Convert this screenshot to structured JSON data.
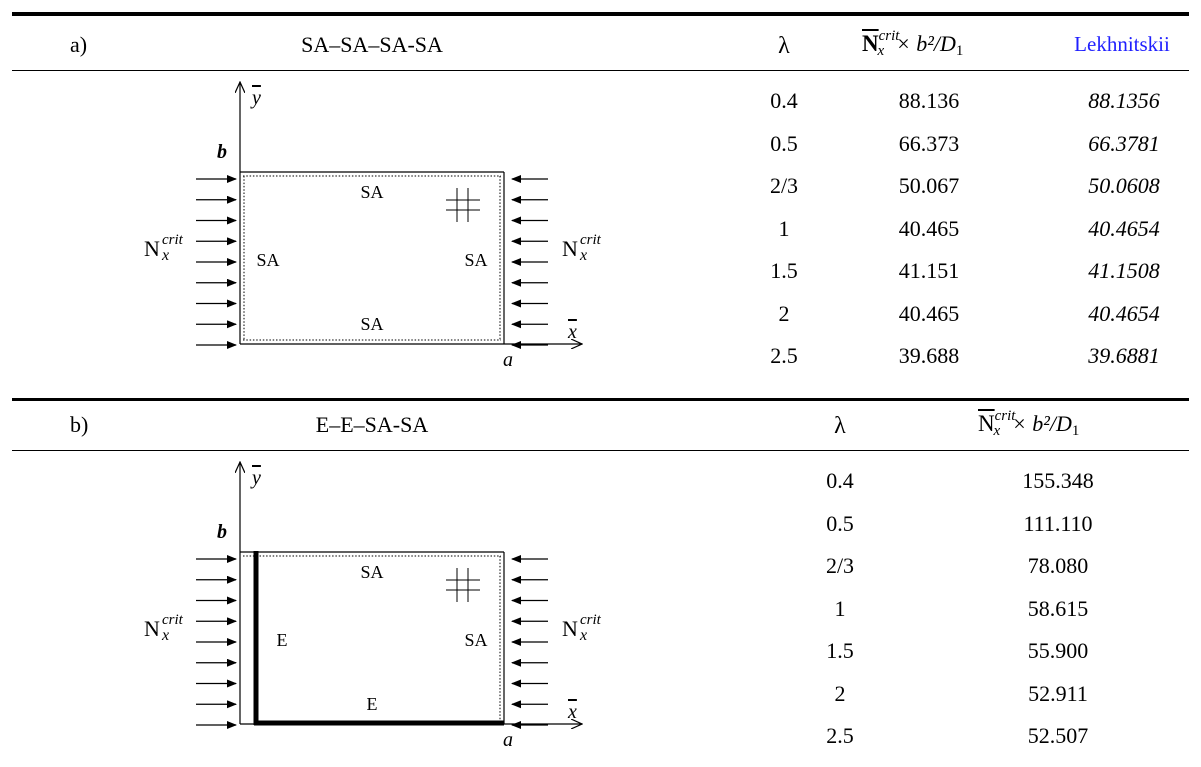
{
  "table_a": {
    "label": "a)",
    "boundary": "SA–SA–SA-SA",
    "col_lambda": "λ",
    "col_value_sym": "N",
    "col_value_sup": "crit",
    "col_value_sub": "x",
    "col_value_tail": "× b²/D",
    "col_value_tail_sub": "1",
    "col_ref": "Lekhnitskii",
    "rows": [
      {
        "lambda": "0.4",
        "value": "88.136",
        "ref": "88.1356"
      },
      {
        "lambda": "0.5",
        "value": "66.373",
        "ref": "66.3781"
      },
      {
        "lambda": "2/3",
        "value": "50.067",
        "ref": "50.0608"
      },
      {
        "lambda": "1",
        "value": "40.465",
        "ref": "40.4654"
      },
      {
        "lambda": "1.5",
        "value": "41.151",
        "ref": "41.1508"
      },
      {
        "lambda": "2",
        "value": "40.465",
        "ref": "40.4654"
      },
      {
        "lambda": "2.5",
        "value": "39.688",
        "ref": "39.6881"
      }
    ],
    "figure": {
      "y_axis": "y",
      "x_axis": "x",
      "b": "b",
      "a": "a",
      "edge_top": "SA",
      "edge_bottom": "SA",
      "edge_left": "SA",
      "edge_right": "SA",
      "load_sym": "N",
      "load_sub": "x",
      "load_sup": "crit"
    }
  },
  "table_b": {
    "label": "b)",
    "boundary": "E–E–SA-SA",
    "col_lambda": "λ",
    "col_value_sym": "N",
    "col_value_sup": "crit",
    "col_value_sub": "x",
    "col_value_tail": "× b²/D",
    "col_value_tail_sub": "1",
    "rows": [
      {
        "lambda": "0.4",
        "value": "155.348"
      },
      {
        "lambda": "0.5",
        "value": "111.110"
      },
      {
        "lambda": "2/3",
        "value": "78.080"
      },
      {
        "lambda": "1",
        "value": "58.615"
      },
      {
        "lambda": "1.5",
        "value": "55.900"
      },
      {
        "lambda": "2",
        "value": "52.911"
      },
      {
        "lambda": "2.5",
        "value": "52.507"
      }
    ],
    "figure": {
      "y_axis": "y",
      "x_axis": "x",
      "b": "b",
      "a": "a",
      "edge_top": "SA",
      "edge_bottom": "E",
      "edge_left": "E",
      "edge_right": "SA",
      "load_sym": "N",
      "load_sub": "x",
      "load_sup": "crit"
    }
  }
}
